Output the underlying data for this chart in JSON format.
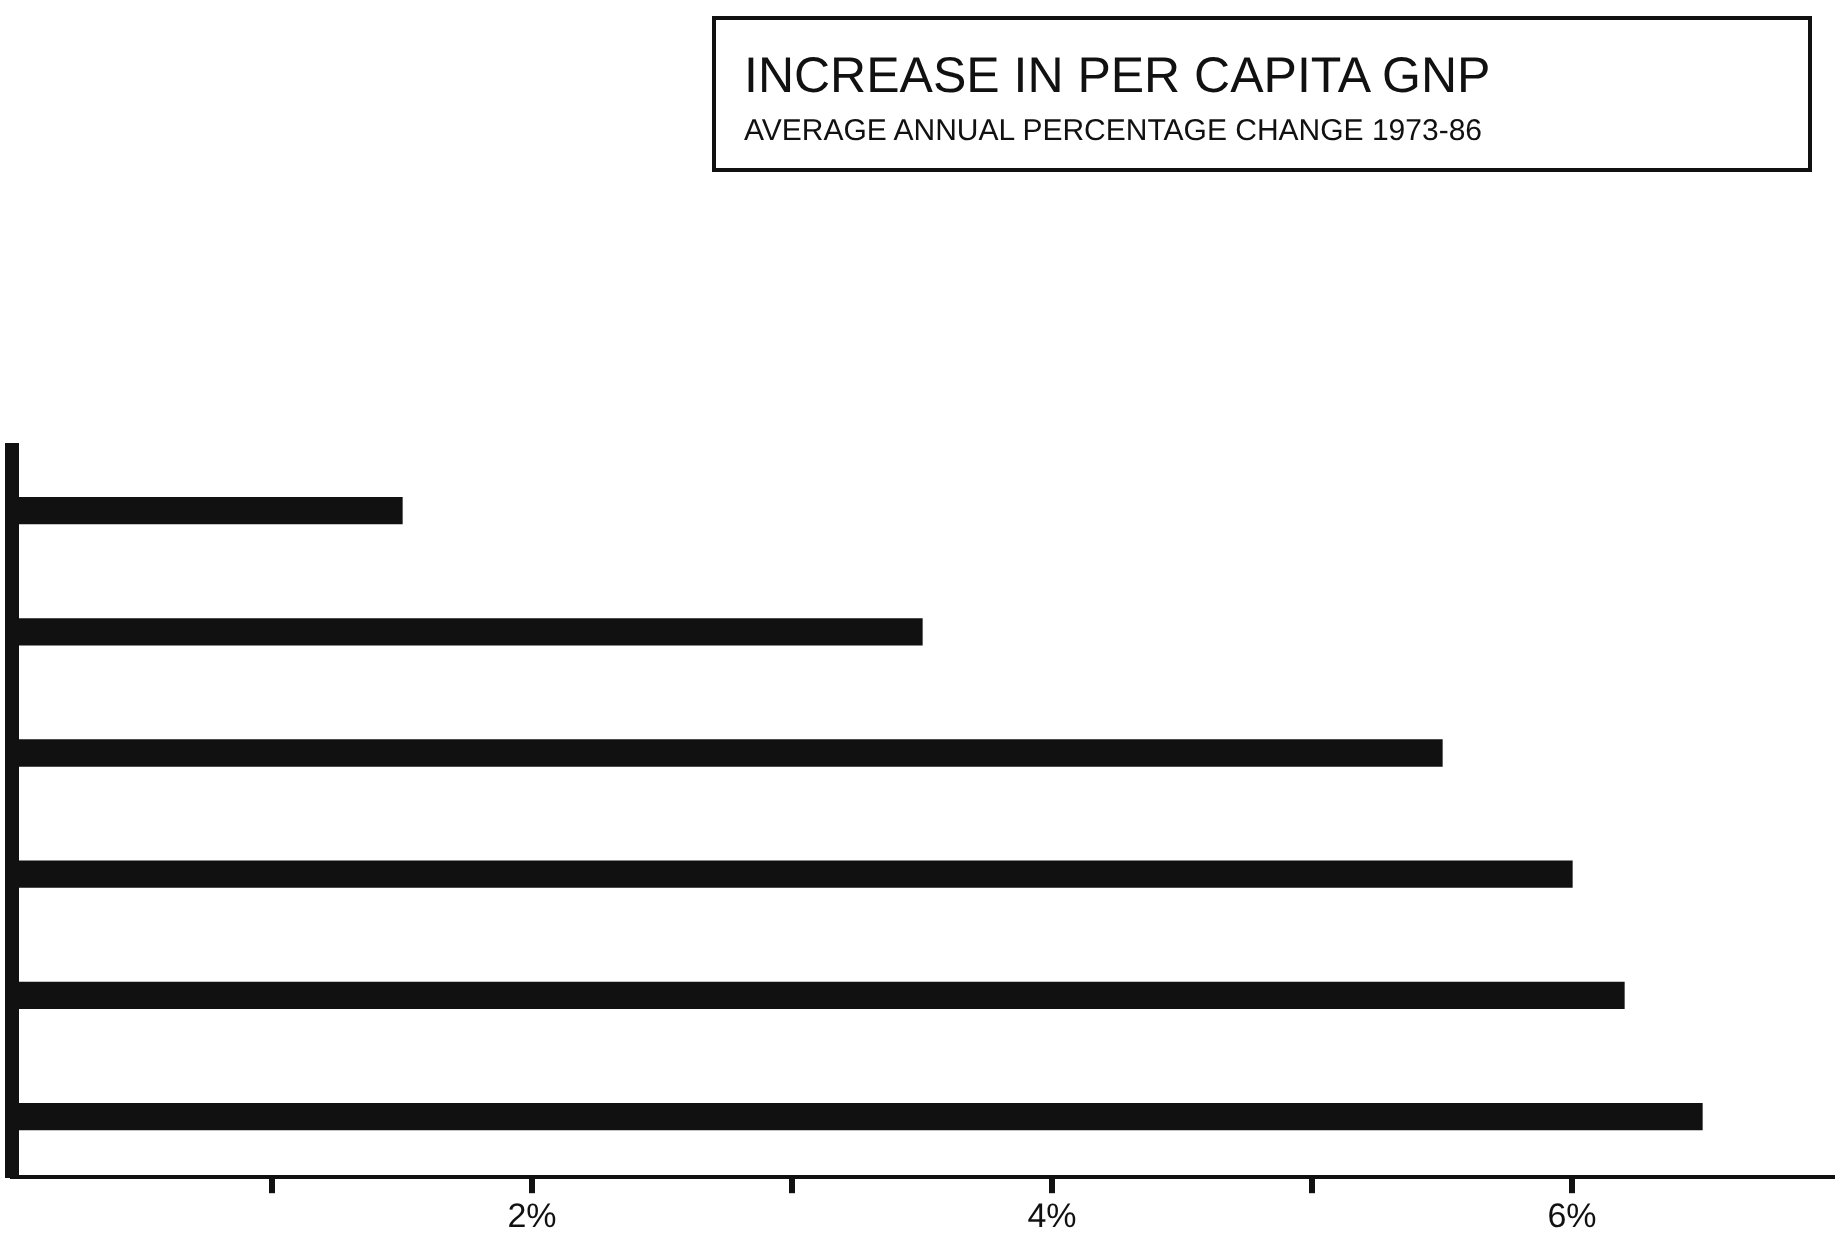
{
  "chart_data": {
    "type": "bar",
    "orientation": "horizontal",
    "title": "INCREASE IN PER CAPITA GNP",
    "subtitle": "AVERAGE ANNUAL PERCENTAGE CHANGE 1973-86",
    "categories": [
      null,
      null,
      null,
      null,
      null,
      null
    ],
    "values": [
      1.5,
      3.5,
      5.5,
      6.0,
      6.2,
      6.5
    ],
    "color": "#111111",
    "xlim": [
      0,
      7
    ],
    "xticks": [
      {
        "value": 1,
        "label": null
      },
      {
        "value": 2,
        "label": "2%"
      },
      {
        "value": 3,
        "label": null
      },
      {
        "value": 4,
        "label": "4%"
      },
      {
        "value": 5,
        "label": null
      },
      {
        "value": 6,
        "label": "6%"
      }
    ],
    "grid": false,
    "legend": false,
    "tick_labels": "x"
  }
}
